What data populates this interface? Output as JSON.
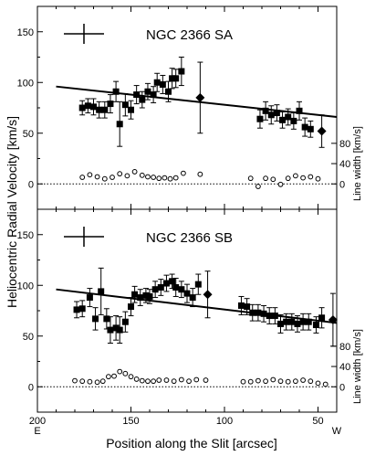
{
  "chart_data": {
    "type": "scatter",
    "xlabel": "Position along the Slit [arcsec]",
    "ylabel": "Heliocentric Radial Velocity [km/s]",
    "secondary_ylabel": "Line width [km/s]",
    "x_direction_labels": {
      "left": "E",
      "right": "W"
    },
    "xlim": [
      200,
      40
    ],
    "x_ticks": [
      200,
      150,
      100,
      50
    ],
    "x_tick_labels": [
      "200",
      "150",
      "100",
      "50"
    ],
    "panels": [
      {
        "legend_label": "NGC 2366 SA",
        "ylim": [
          -25,
          175
        ],
        "y_ticks": [
          0,
          50,
          100,
          150
        ],
        "y_tick_labels": [
          "0",
          "50",
          "100",
          "150"
        ],
        "right_ticks": [
          0,
          40,
          80
        ],
        "right_tick_labels": [
          "0",
          "40",
          "80"
        ],
        "fit_line": {
          "x": [
            190,
            40
          ],
          "y": [
            96,
            66
          ]
        },
        "velocity_squares": [
          {
            "x": 176,
            "y": 75,
            "err": 7
          },
          {
            "x": 173,
            "y": 77,
            "err": 7
          },
          {
            "x": 170,
            "y": 76,
            "err": 8
          },
          {
            "x": 167,
            "y": 73,
            "err": 8
          },
          {
            "x": 164,
            "y": 73,
            "err": 8
          },
          {
            "x": 161,
            "y": 79,
            "err": 9
          },
          {
            "x": 158,
            "y": 91,
            "err": 10
          },
          {
            "x": 156,
            "y": 59,
            "err": 22
          },
          {
            "x": 153,
            "y": 78,
            "err": 11
          },
          {
            "x": 150,
            "y": 73,
            "err": 9
          },
          {
            "x": 147,
            "y": 88,
            "err": 9
          },
          {
            "x": 144,
            "y": 83,
            "err": 8
          },
          {
            "x": 141,
            "y": 91,
            "err": 8
          },
          {
            "x": 138,
            "y": 88,
            "err": 8
          },
          {
            "x": 136,
            "y": 100,
            "err": 9
          },
          {
            "x": 133,
            "y": 98,
            "err": 9
          },
          {
            "x": 130,
            "y": 91,
            "err": 10
          },
          {
            "x": 128,
            "y": 104,
            "err": 10
          },
          {
            "x": 126,
            "y": 104,
            "err": 9
          },
          {
            "x": 123,
            "y": 111,
            "err": 14
          },
          {
            "x": 81,
            "y": 64,
            "err": 9
          },
          {
            "x": 78,
            "y": 72,
            "err": 9
          },
          {
            "x": 75,
            "y": 68,
            "err": 9
          },
          {
            "x": 72,
            "y": 70,
            "err": 8
          },
          {
            "x": 69,
            "y": 63,
            "err": 8
          },
          {
            "x": 66,
            "y": 66,
            "err": 8
          },
          {
            "x": 63,
            "y": 62,
            "err": 8
          },
          {
            "x": 60,
            "y": 72,
            "err": 9
          },
          {
            "x": 57,
            "y": 56,
            "err": 9
          },
          {
            "x": 54,
            "y": 54,
            "err": 8
          }
        ],
        "velocity_diamonds": [
          {
            "x": 113,
            "y": 85,
            "err": 35
          },
          {
            "x": 48,
            "y": 52,
            "err": 16
          }
        ],
        "line_width_points": [
          {
            "x": 176,
            "y": 13
          },
          {
            "x": 172,
            "y": 18
          },
          {
            "x": 168,
            "y": 14
          },
          {
            "x": 164,
            "y": 10
          },
          {
            "x": 160,
            "y": 13
          },
          {
            "x": 156,
            "y": 20
          },
          {
            "x": 152,
            "y": 16
          },
          {
            "x": 148,
            "y": 24
          },
          {
            "x": 144,
            "y": 17
          },
          {
            "x": 141,
            "y": 14
          },
          {
            "x": 138,
            "y": 13
          },
          {
            "x": 135,
            "y": 11
          },
          {
            "x": 132,
            "y": 12
          },
          {
            "x": 129,
            "y": 10
          },
          {
            "x": 126,
            "y": 12
          },
          {
            "x": 122,
            "y": 21
          },
          {
            "x": 113,
            "y": 19
          },
          {
            "x": 86,
            "y": 11
          },
          {
            "x": 82,
            "y": -5
          },
          {
            "x": 78,
            "y": 11
          },
          {
            "x": 74,
            "y": 9
          },
          {
            "x": 70,
            "y": -1
          },
          {
            "x": 66,
            "y": 11
          },
          {
            "x": 62,
            "y": 16
          },
          {
            "x": 58,
            "y": 12
          },
          {
            "x": 54,
            "y": 14
          },
          {
            "x": 50,
            "y": 10
          }
        ]
      },
      {
        "legend_label": "NGC 2366 SB",
        "ylim": [
          -25,
          175
        ],
        "y_ticks": [
          0,
          50,
          100,
          150
        ],
        "y_tick_labels": [
          "0",
          "50",
          "100",
          "150"
        ],
        "right_ticks": [
          0,
          40,
          80
        ],
        "right_tick_labels": [
          "0",
          "40",
          "80"
        ],
        "fit_line": {
          "x": [
            190,
            40
          ],
          "y": [
            96,
            63
          ]
        },
        "velocity_squares": [
          {
            "x": 179,
            "y": 76,
            "err": 8
          },
          {
            "x": 176,
            "y": 77,
            "err": 8
          },
          {
            "x": 172,
            "y": 88,
            "err": 9
          },
          {
            "x": 169,
            "y": 67,
            "err": 11
          },
          {
            "x": 166,
            "y": 94,
            "err": 23
          },
          {
            "x": 163,
            "y": 67,
            "err": 10
          },
          {
            "x": 161,
            "y": 56,
            "err": 13
          },
          {
            "x": 158,
            "y": 58,
            "err": 12
          },
          {
            "x": 156,
            "y": 56,
            "err": 13
          },
          {
            "x": 153,
            "y": 64,
            "err": 10
          },
          {
            "x": 150,
            "y": 79,
            "err": 9
          },
          {
            "x": 148,
            "y": 91,
            "err": 8
          },
          {
            "x": 145,
            "y": 88,
            "err": 8
          },
          {
            "x": 142,
            "y": 90,
            "err": 7
          },
          {
            "x": 140,
            "y": 89,
            "err": 7
          },
          {
            "x": 137,
            "y": 96,
            "err": 8
          },
          {
            "x": 134,
            "y": 98,
            "err": 8
          },
          {
            "x": 131,
            "y": 102,
            "err": 8
          },
          {
            "x": 128,
            "y": 104,
            "err": 7
          },
          {
            "x": 126,
            "y": 98,
            "err": 9
          },
          {
            "x": 123,
            "y": 96,
            "err": 8
          },
          {
            "x": 120,
            "y": 92,
            "err": 9
          },
          {
            "x": 117,
            "y": 88,
            "err": 9
          },
          {
            "x": 114,
            "y": 101,
            "err": 10
          },
          {
            "x": 91,
            "y": 80,
            "err": 9
          },
          {
            "x": 88,
            "y": 79,
            "err": 8
          },
          {
            "x": 85,
            "y": 73,
            "err": 8
          },
          {
            "x": 82,
            "y": 73,
            "err": 8
          },
          {
            "x": 79,
            "y": 72,
            "err": 8
          },
          {
            "x": 76,
            "y": 70,
            "err": 8
          },
          {
            "x": 73,
            "y": 70,
            "err": 8
          },
          {
            "x": 70,
            "y": 62,
            "err": 9
          },
          {
            "x": 67,
            "y": 64,
            "err": 8
          },
          {
            "x": 64,
            "y": 64,
            "err": 8
          },
          {
            "x": 61,
            "y": 62,
            "err": 8
          },
          {
            "x": 58,
            "y": 64,
            "err": 8
          },
          {
            "x": 55,
            "y": 64,
            "err": 8
          },
          {
            "x": 51,
            "y": 61,
            "err": 8
          },
          {
            "x": 48,
            "y": 68,
            "err": 10
          }
        ],
        "velocity_diamonds": [
          {
            "x": 109,
            "y": 91,
            "err": 23
          },
          {
            "x": 42,
            "y": 66,
            "err": 26
          }
        ],
        "line_width_points": [
          {
            "x": 180,
            "y": 12
          },
          {
            "x": 176,
            "y": 11
          },
          {
            "x": 172,
            "y": 10
          },
          {
            "x": 168,
            "y": 9
          },
          {
            "x": 165,
            "y": 11
          },
          {
            "x": 162,
            "y": 20
          },
          {
            "x": 159,
            "y": 21
          },
          {
            "x": 156,
            "y": 30
          },
          {
            "x": 153,
            "y": 26
          },
          {
            "x": 150,
            "y": 20
          },
          {
            "x": 147,
            "y": 15
          },
          {
            "x": 144,
            "y": 12
          },
          {
            "x": 141,
            "y": 11
          },
          {
            "x": 138,
            "y": 11
          },
          {
            "x": 135,
            "y": 13
          },
          {
            "x": 131,
            "y": 13
          },
          {
            "x": 127,
            "y": 11
          },
          {
            "x": 123,
            "y": 14
          },
          {
            "x": 119,
            "y": 11
          },
          {
            "x": 115,
            "y": 14
          },
          {
            "x": 110,
            "y": 13
          },
          {
            "x": 90,
            "y": 10
          },
          {
            "x": 86,
            "y": 10
          },
          {
            "x": 82,
            "y": 12
          },
          {
            "x": 78,
            "y": 11
          },
          {
            "x": 74,
            "y": 14
          },
          {
            "x": 70,
            "y": 11
          },
          {
            "x": 66,
            "y": 10
          },
          {
            "x": 62,
            "y": 11
          },
          {
            "x": 58,
            "y": 13
          },
          {
            "x": 54,
            "y": 11
          },
          {
            "x": 50,
            "y": 7
          },
          {
            "x": 46,
            "y": 5
          }
        ]
      }
    ],
    "grid": false,
    "legend_position": "top-left"
  }
}
